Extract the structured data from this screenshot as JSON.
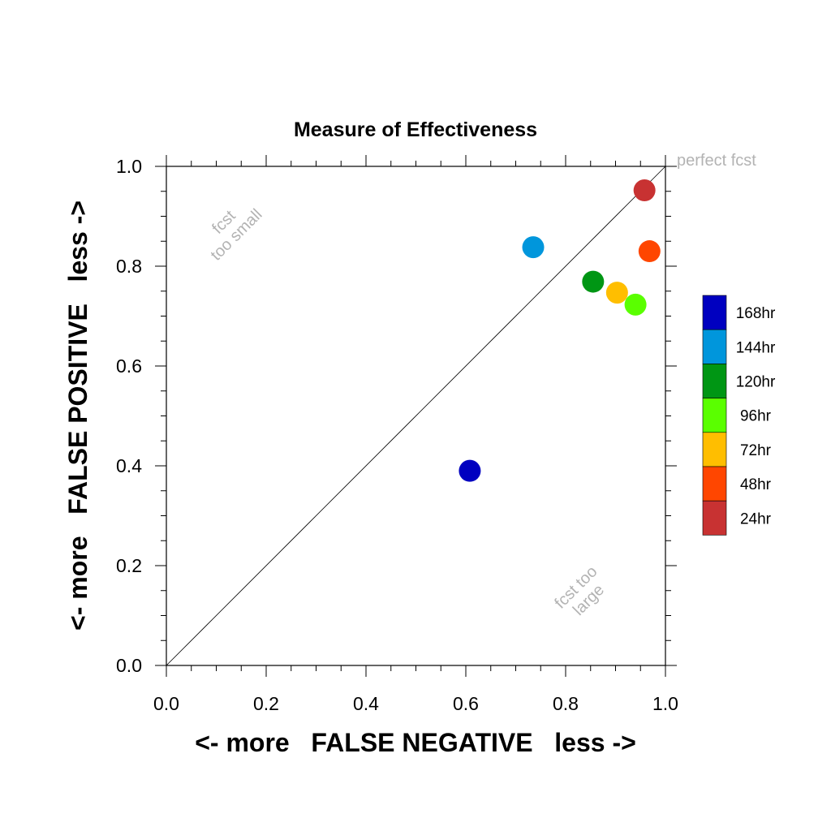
{
  "chart_data": {
    "type": "scatter",
    "title": "Measure of Effectiveness",
    "xlabel": "<- more   FALSE NEGATIVE   less ->",
    "ylabel": "<- more   FALSE POSITIVE   less ->",
    "xlim": [
      0.0,
      1.0
    ],
    "ylim": [
      0.0,
      1.0
    ],
    "xticks": [
      "0.0",
      "0.2",
      "0.4",
      "0.6",
      "0.8",
      "1.0"
    ],
    "yticks": [
      "0.0",
      "0.2",
      "0.4",
      "0.6",
      "0.8",
      "1.0"
    ],
    "grid": false,
    "reference_line": "diagonal",
    "annotations": {
      "perfect": "perfect fcst",
      "too_small": [
        "fcst",
        "too small"
      ],
      "too_large": [
        "fcst too",
        "large"
      ]
    },
    "legend_position": "right",
    "series": [
      {
        "name": "168hr",
        "color": "#0000c0",
        "x": 0.608,
        "y": 0.39
      },
      {
        "name": "144hr",
        "color": "#0096dc",
        "x": 0.735,
        "y": 0.838
      },
      {
        "name": "120hr",
        "color": "#009614",
        "x": 0.855,
        "y": 0.769
      },
      {
        "name": "96hr",
        "color": "#5aff00",
        "x": 0.94,
        "y": 0.723
      },
      {
        "name": "72hr",
        "color": "#ffbe00",
        "x": 0.903,
        "y": 0.747
      },
      {
        "name": "48hr",
        "color": "#ff4600",
        "x": 0.968,
        "y": 0.83
      },
      {
        "name": "24hr",
        "color": "#c83232",
        "x": 0.958,
        "y": 0.952
      }
    ]
  }
}
